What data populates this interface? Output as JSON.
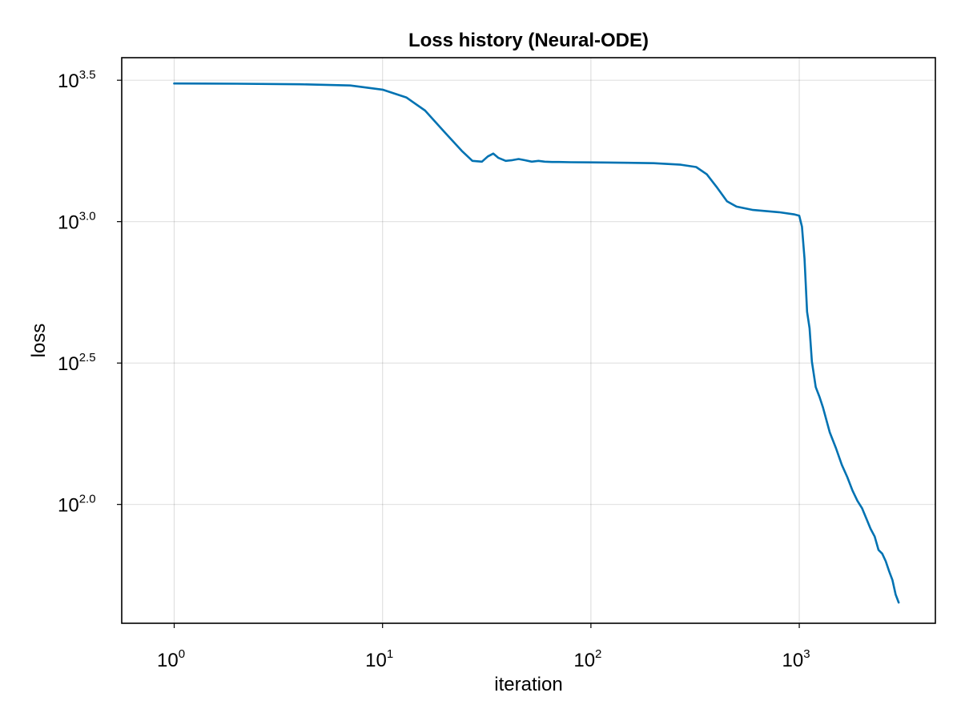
{
  "chart_data": {
    "type": "line",
    "title": "Loss history (Neural-ODE)",
    "xlabel": "iteration",
    "ylabel": "loss",
    "x_scale": "log10",
    "y_scale": "log10",
    "xlim": [
      0.56,
      4500
    ],
    "ylim": [
      38,
      3800
    ],
    "grid": true,
    "line_color": "#0072b2",
    "x_ticks": [
      {
        "value": 1,
        "base": "10",
        "exp": "0"
      },
      {
        "value": 10,
        "base": "10",
        "exp": "1"
      },
      {
        "value": 100,
        "base": "10",
        "exp": "2"
      },
      {
        "value": 1000,
        "base": "10",
        "exp": "3"
      }
    ],
    "y_ticks": [
      {
        "value": 100,
        "base": "10",
        "exp": "2.0"
      },
      {
        "value": 316.2,
        "base": "10",
        "exp": "2.5"
      },
      {
        "value": 1000,
        "base": "10",
        "exp": "3.0"
      },
      {
        "value": 3162.3,
        "base": "10",
        "exp": "3.5"
      }
    ],
    "series": [
      {
        "x": [
          1,
          2,
          4,
          7,
          10,
          13,
          16,
          20,
          24,
          27,
          30,
          32,
          34,
          36,
          39,
          42,
          45,
          48,
          52,
          56,
          60,
          65,
          70,
          80,
          100,
          150,
          200,
          270,
          320,
          360,
          400,
          450,
          500,
          600,
          800,
          950,
          1000,
          1030,
          1060,
          1090,
          1120,
          1150,
          1200,
          1250,
          1300,
          1400,
          1500,
          1600,
          1700,
          1800,
          1900,
          2000,
          2100,
          2200,
          2300,
          2400,
          2500,
          2600,
          2700,
          2800,
          2900,
          3000
        ],
        "y": [
          3080,
          3075,
          3060,
          3030,
          2930,
          2750,
          2470,
          2060,
          1780,
          1640,
          1630,
          1700,
          1740,
          1680,
          1640,
          1650,
          1665,
          1650,
          1630,
          1640,
          1630,
          1625,
          1625,
          1622,
          1620,
          1615,
          1610,
          1590,
          1560,
          1470,
          1330,
          1180,
          1130,
          1100,
          1080,
          1060,
          1050,
          960,
          740,
          480,
          420,
          320,
          260,
          240,
          220,
          180,
          158,
          138,
          125,
          112,
          103,
          97,
          89,
          82,
          77,
          69,
          67,
          63,
          58,
          54,
          48,
          45
        ]
      }
    ]
  }
}
